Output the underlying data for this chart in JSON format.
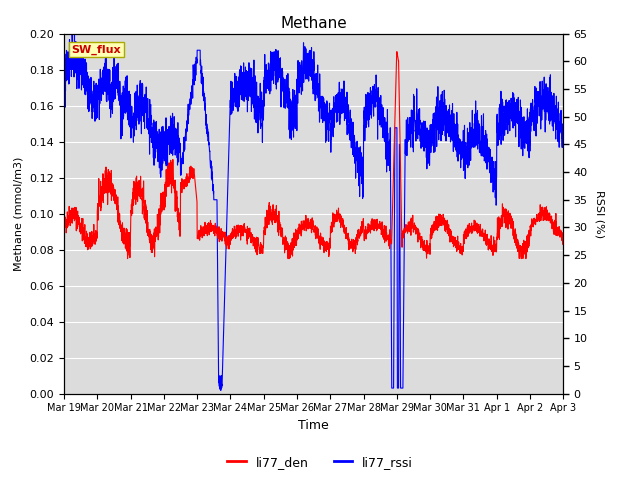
{
  "title": "Methane",
  "xlabel": "Time",
  "ylabel_left": "Methane (mmol/m3)",
  "ylabel_right": "RSSI (%)",
  "ylim_left": [
    0.0,
    0.2
  ],
  "ylim_right": [
    0,
    65
  ],
  "yticks_left": [
    0.0,
    0.02,
    0.04,
    0.06,
    0.08,
    0.1,
    0.12,
    0.14,
    0.16,
    0.18,
    0.2
  ],
  "yticks_right": [
    0,
    5,
    10,
    15,
    20,
    25,
    30,
    35,
    40,
    45,
    50,
    55,
    60,
    65
  ],
  "xtick_labels": [
    "Mar 19",
    "Mar 20",
    "Mar 21",
    "Mar 22",
    "Mar 23",
    "Mar 24",
    "Mar 25",
    "Mar 26",
    "Mar 27",
    "Mar 28",
    "Mar 29",
    "Mar 30",
    "Mar 31",
    "Apr 1",
    "Apr 2",
    "Apr 3"
  ],
  "color_den": "#ff0000",
  "color_rssi": "#0000ff",
  "bg_color": "#dcdcdc",
  "legend_box_facecolor": "#ffffb3",
  "legend_box_edge": "#aaaa00",
  "sw_flux_label": "SW_flux",
  "sw_flux_color": "#cc0000",
  "linewidth": 0.8,
  "figsize": [
    6.4,
    4.8
  ],
  "dpi": 100
}
